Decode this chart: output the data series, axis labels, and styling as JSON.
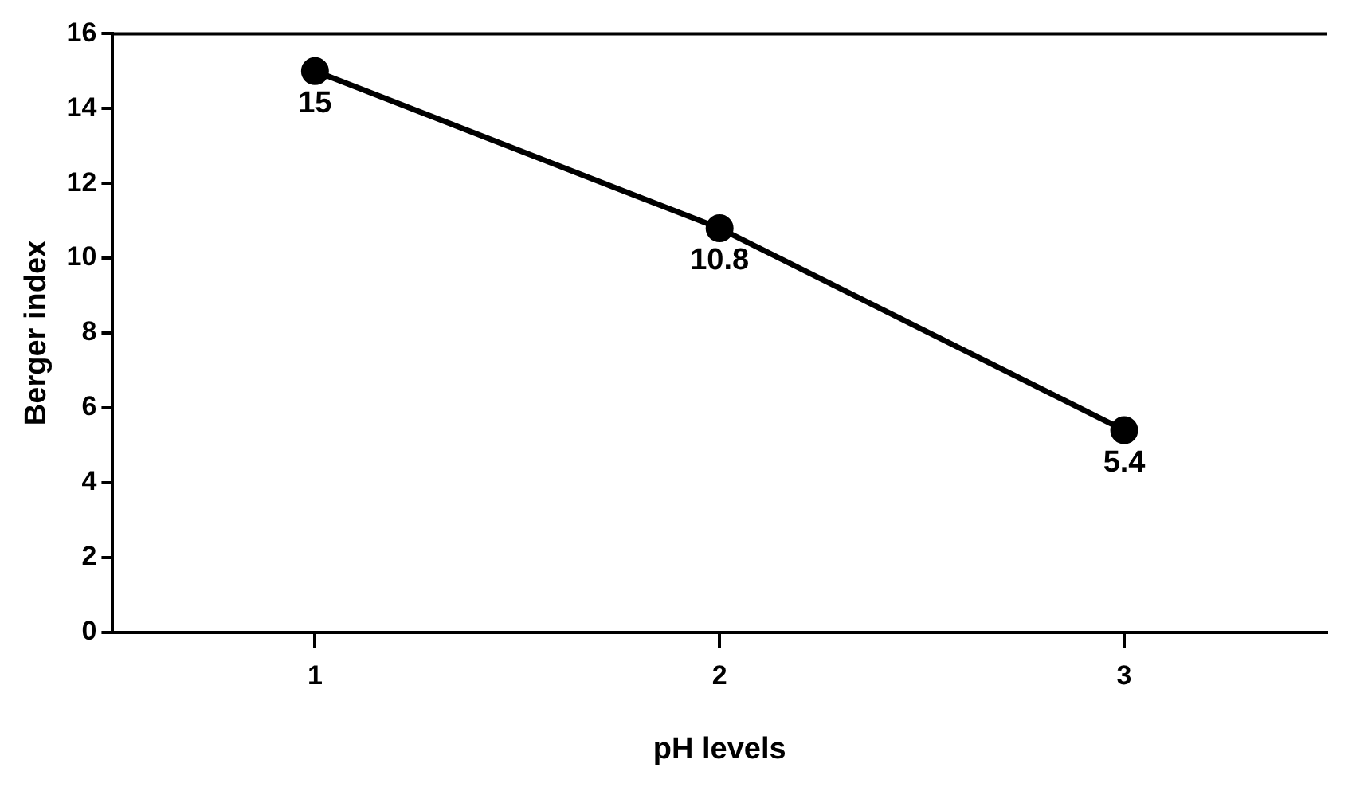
{
  "chart_data": {
    "type": "line",
    "xlabel": "pH levels",
    "ylabel": "Berger index",
    "categories": [
      "1",
      "2",
      "3"
    ],
    "series": [
      {
        "color": "#000000",
        "values": [
          15,
          10.8,
          5.4
        ]
      }
    ],
    "ylim": [
      0,
      16
    ],
    "yticks": [
      0,
      2,
      4,
      6,
      8,
      10,
      12,
      14,
      16
    ],
    "data_labels": true,
    "marker": "circle",
    "line_style": "solid",
    "grid": false,
    "legend": false
  }
}
